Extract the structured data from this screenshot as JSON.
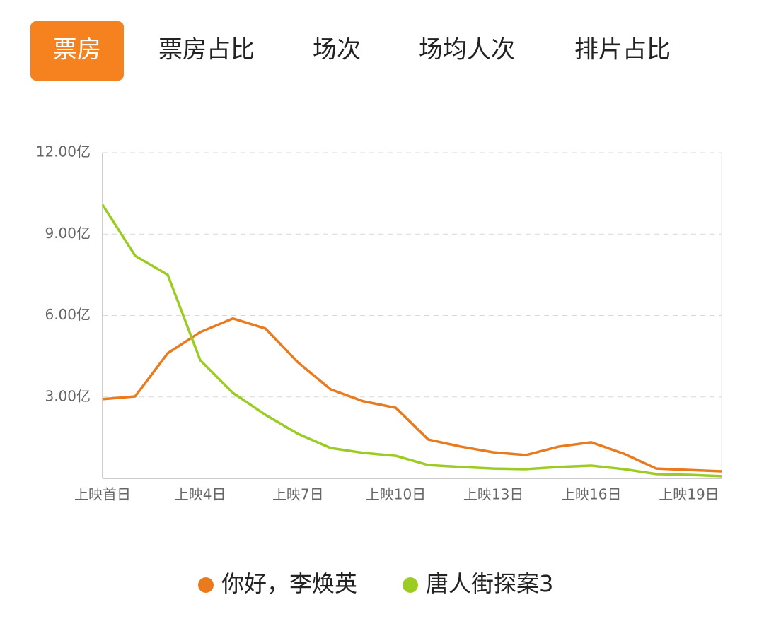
{
  "tabs": [
    "票房",
    "票房占比",
    "场次",
    "场均人次",
    "排片占比"
  ],
  "active_tab": 0,
  "chart_data": {
    "type": "line",
    "categories": [
      "上映首日",
      null,
      null,
      "上映4日",
      null,
      null,
      "上映7日",
      null,
      null,
      "上映10日",
      null,
      null,
      "上映13日",
      null,
      null,
      "上映16日",
      null,
      null,
      "上映19日",
      null
    ],
    "series": [
      {
        "name": "你好，李焕英",
        "color": "#ea7a1e",
        "values": [
          2.92,
          3.02,
          4.61,
          5.39,
          5.89,
          5.52,
          4.27,
          3.28,
          2.84,
          2.6,
          1.43,
          1.17,
          0.96,
          0.86,
          1.17,
          1.33,
          0.91,
          0.36,
          0.31,
          0.26
        ]
      },
      {
        "name": "唐人街探案3",
        "color": "#9ccc24",
        "values": [
          10.08,
          8.2,
          7.5,
          4.35,
          3.15,
          2.34,
          1.64,
          1.12,
          0.94,
          0.83,
          0.49,
          0.42,
          0.36,
          0.34,
          0.42,
          0.47,
          0.34,
          0.16,
          0.13,
          0.08
        ]
      }
    ],
    "ylim": [
      0,
      12
    ],
    "yticks": [
      {
        "value": 3,
        "label": "3.00亿"
      },
      {
        "value": 6,
        "label": "6.00亿"
      },
      {
        "value": 9,
        "label": "9.00亿"
      },
      {
        "value": 12,
        "label": "12.00亿"
      }
    ],
    "grid": true
  }
}
